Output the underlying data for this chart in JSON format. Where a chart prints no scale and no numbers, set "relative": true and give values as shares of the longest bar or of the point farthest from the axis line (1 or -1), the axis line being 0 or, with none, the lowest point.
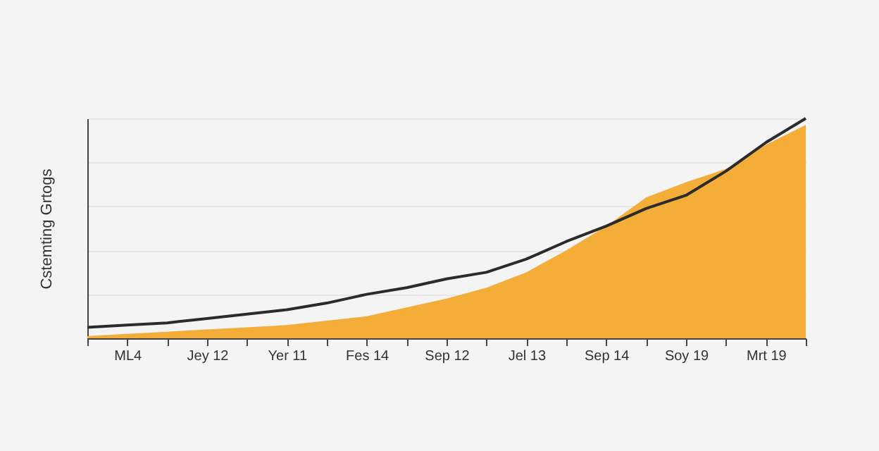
{
  "chart_data": {
    "type": "area",
    "ylabel": "Cstemting Grtogs",
    "relative": true,
    "categories": [
      null,
      "ML4",
      null,
      "Jey 12",
      null,
      "Yer 11",
      null,
      "Fes 14",
      null,
      "Sep 12",
      null,
      "Jel 13",
      null,
      "Sep 14",
      null,
      "Soy 19",
      null,
      "Mrt 19",
      null
    ],
    "grid": "y",
    "series": [
      {
        "color": "#f5ad3a",
        "values": [
          0.01,
          0.02,
          0.03,
          0.04,
          0.05,
          0.06,
          0.08,
          0.1,
          0.14,
          0.18,
          0.23,
          0.3,
          0.4,
          0.51,
          0.64,
          0.71,
          0.77,
          0.88,
          0.97
        ]
      },
      {
        "type": "line",
        "color": "#2b2b2b",
        "values": [
          0.05,
          0.06,
          0.07,
          0.09,
          0.11,
          0.13,
          0.16,
          0.2,
          0.23,
          0.27,
          0.3,
          0.36,
          0.44,
          0.51,
          0.59,
          0.65,
          0.76,
          0.89,
          1.0
        ]
      }
    ]
  }
}
